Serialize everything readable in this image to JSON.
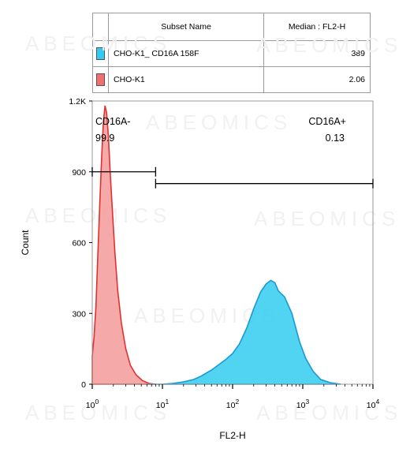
{
  "legend": {
    "header_name": "Subset Name",
    "header_value": "Median : FL2-H",
    "rows": [
      {
        "name": "CHO-K1_ CD16A 158F",
        "value": "389",
        "color": "#33ccf0"
      },
      {
        "name": "CHO-K1",
        "value": "2.06",
        "color": "#f07070"
      }
    ]
  },
  "watermark": "ABEOMICS",
  "chart_data": {
    "type": "area",
    "xlabel": "FL2-H",
    "ylabel": "Count",
    "x_scale": "log",
    "xlim": [
      1,
      10000
    ],
    "ylim": [
      0,
      1200
    ],
    "x_ticks": [
      {
        "value": 1,
        "base": "10",
        "exp": "0"
      },
      {
        "value": 10,
        "base": "10",
        "exp": "1"
      },
      {
        "value": 100,
        "base": "10",
        "exp": "2"
      },
      {
        "value": 1000,
        "base": "10",
        "exp": "3"
      },
      {
        "value": 10000,
        "base": "10",
        "exp": "4"
      }
    ],
    "y_ticks": [
      {
        "value": 0,
        "label": "0"
      },
      {
        "value": 300,
        "label": "300"
      },
      {
        "value": 600,
        "label": "600"
      },
      {
        "value": 900,
        "label": "900"
      },
      {
        "value": 1200,
        "label": "1.2K"
      }
    ],
    "series": [
      {
        "name": "CHO-K1",
        "fill": "#f59a9a",
        "stroke": "#e23030",
        "points": [
          [
            1,
            120
          ],
          [
            1.06,
            200
          ],
          [
            1.13,
            330
          ],
          [
            1.2,
            540
          ],
          [
            1.28,
            760
          ],
          [
            1.36,
            960
          ],
          [
            1.44,
            1110
          ],
          [
            1.52,
            1180
          ],
          [
            1.6,
            1150
          ],
          [
            1.7,
            1050
          ],
          [
            1.8,
            900
          ],
          [
            1.95,
            720
          ],
          [
            2.1,
            560
          ],
          [
            2.3,
            400
          ],
          [
            2.6,
            260
          ],
          [
            3.0,
            150
          ],
          [
            3.5,
            80
          ],
          [
            4.2,
            40
          ],
          [
            5.2,
            15
          ],
          [
            6.5,
            3
          ],
          [
            8,
            0
          ]
        ]
      },
      {
        "name": "CHO-K1_ CD16A 158F",
        "fill": "#33ccf0",
        "stroke": "#1a9ad0",
        "points": [
          [
            6,
            0
          ],
          [
            10,
            0
          ],
          [
            14,
            3
          ],
          [
            20,
            10
          ],
          [
            28,
            20
          ],
          [
            36,
            35
          ],
          [
            50,
            60
          ],
          [
            65,
            85
          ],
          [
            80,
            105
          ],
          [
            100,
            130
          ],
          [
            125,
            170
          ],
          [
            160,
            240
          ],
          [
            200,
            320
          ],
          [
            250,
            390
          ],
          [
            300,
            425
          ],
          [
            350,
            440
          ],
          [
            400,
            430
          ],
          [
            450,
            395
          ],
          [
            550,
            370
          ],
          [
            700,
            300
          ],
          [
            900,
            180
          ],
          [
            1100,
            110
          ],
          [
            1400,
            55
          ],
          [
            1800,
            20
          ],
          [
            2500,
            6
          ],
          [
            3500,
            0
          ]
        ]
      }
    ],
    "gates": [
      {
        "name": "CD16A-",
        "percent": "99.9",
        "x_start": 1,
        "x_end": 8,
        "y": 900
      },
      {
        "name": "CD16A+",
        "percent": "0.13",
        "x_start": 8,
        "x_end": 10000,
        "y": 850
      }
    ]
  }
}
